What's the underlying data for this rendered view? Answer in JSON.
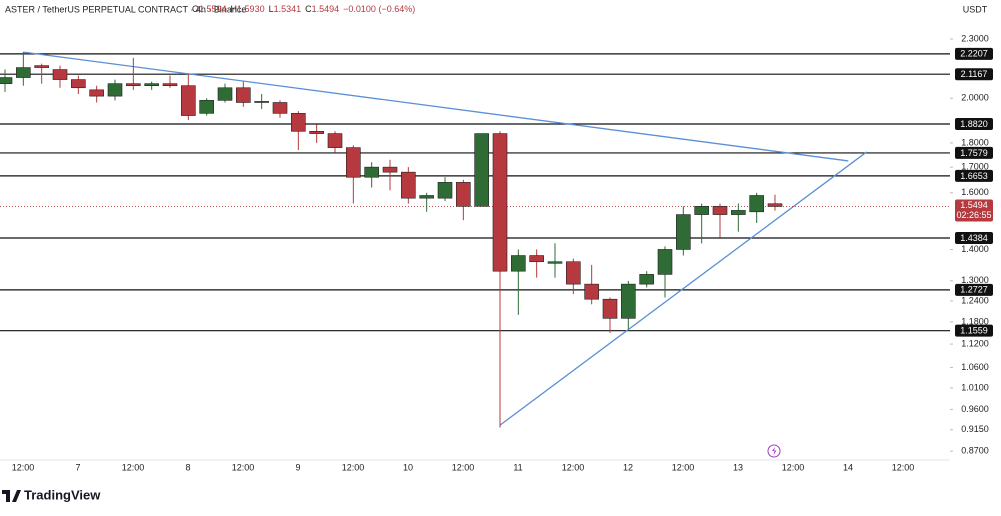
{
  "chart_data": {
    "type": "candlestick",
    "title": "ASTER / TetherUS PERPETUAL CONTRACT · 4h · Binance",
    "ohlc_header": [
      {
        "key": "O",
        "value": "1.5594"
      },
      {
        "key": "H",
        "value": "1.5930"
      },
      {
        "key": "L",
        "value": "1.5341"
      },
      {
        "key": "C",
        "value": "1.5494"
      }
    ],
    "change": "−0.0100 (−0.64%)",
    "currency": "USDT",
    "brand": "TradingView",
    "log_scale": true,
    "up_color": "#2f6b35",
    "down_color": "#b5393f",
    "open": [
      2.07,
      2.1,
      2.16,
      2.14,
      2.09,
      2.04,
      2.01,
      2.07,
      2.06,
      2.07,
      2.06,
      1.93,
      1.99,
      2.05,
      1.98,
      1.98,
      1.93,
      1.85,
      1.84,
      1.78,
      1.66,
      1.7,
      1.68,
      1.58,
      1.58,
      1.64,
      1.55,
      1.84,
      1.33,
      1.38,
      1.355,
      1.36,
      1.29,
      1.245,
      1.19,
      1.29,
      1.32,
      1.4,
      1.52,
      1.55,
      1.52,
      1.53,
      1.5594
    ],
    "high": [
      2.14,
      2.23,
      2.17,
      2.16,
      2.11,
      2.06,
      2.09,
      2.2,
      2.08,
      2.11,
      2.12,
      2.0,
      2.07,
      2.08,
      2.02,
      1.99,
      1.94,
      1.88,
      1.85,
      1.79,
      1.72,
      1.73,
      1.7,
      1.6,
      1.66,
      1.65,
      1.84,
      1.85,
      1.4,
      1.4,
      1.42,
      1.37,
      1.35,
      1.25,
      1.3,
      1.33,
      1.41,
      1.55,
      1.56,
      1.56,
      1.56,
      1.6,
      1.593
    ],
    "low": [
      2.03,
      2.06,
      2.07,
      2.05,
      2.02,
      1.98,
      1.99,
      2.04,
      2.04,
      2.05,
      1.9,
      1.92,
      1.98,
      1.96,
      1.95,
      1.91,
      1.77,
      1.8,
      1.76,
      1.56,
      1.62,
      1.61,
      1.56,
      1.53,
      1.57,
      1.5,
      1.55,
      0.92,
      1.2,
      1.31,
      1.31,
      1.26,
      1.23,
      1.15,
      1.16,
      1.28,
      1.25,
      1.38,
      1.42,
      1.44,
      1.46,
      1.49,
      1.5341
    ],
    "close": [
      2.1,
      2.15,
      2.15,
      2.09,
      2.05,
      2.01,
      2.07,
      2.06,
      2.07,
      2.06,
      1.92,
      1.99,
      2.05,
      1.98,
      1.985,
      1.93,
      1.85,
      1.84,
      1.78,
      1.66,
      1.7,
      1.68,
      1.58,
      1.59,
      1.64,
      1.55,
      1.84,
      1.33,
      1.38,
      1.36,
      1.36,
      1.29,
      1.245,
      1.19,
      1.29,
      1.32,
      1.4,
      1.52,
      1.55,
      1.52,
      1.535,
      1.59,
      1.5494
    ],
    "xticks": [
      "12:00",
      "7",
      "12:00",
      "8",
      "12:00",
      "9",
      "12:00",
      "10",
      "12:00",
      "11",
      "12:00",
      "12",
      "12:00",
      "13",
      "12:00",
      "14",
      "12:00"
    ],
    "ylim": [
      0.852,
      2.394
    ],
    "yticks": [
      {
        "value": 2.3,
        "label": "2.3000"
      },
      {
        "value": 2.0,
        "label": "2.0000"
      },
      {
        "value": 1.8,
        "label": "1.8000"
      },
      {
        "value": 1.7,
        "label": "1.7000"
      },
      {
        "value": 1.6,
        "label": "1.6000"
      },
      {
        "value": 1.4,
        "label": "1.4000"
      },
      {
        "value": 1.3,
        "label": "1.3000"
      },
      {
        "value": 1.24,
        "label": "1.2400"
      },
      {
        "value": 1.18,
        "label": "1.1800"
      },
      {
        "value": 1.12,
        "label": "1.1200"
      },
      {
        "value": 1.06,
        "label": "1.0600"
      },
      {
        "value": 1.01,
        "label": "1.0100"
      },
      {
        "value": 0.96,
        "label": "0.9600"
      },
      {
        "value": 0.915,
        "label": "0.9150"
      },
      {
        "value": 0.87,
        "label": "0.8700"
      }
    ],
    "levels": [
      2.2207,
      2.1167,
      {
        "value": 1.882,
        "label": "1.8820"
      },
      1.7579,
      1.6653,
      1.4384,
      1.2727,
      1.1559
    ],
    "trendlines": [
      {
        "x": [
          1,
          46
        ],
        "y": [
          2.23,
          1.725
        ],
        "color": "#5b8fd6"
      },
      {
        "x": [
          27,
          47
        ],
        "y": [
          0.925,
          1.762
        ],
        "color": "#5b8fd6"
      }
    ],
    "last_price": 1.5494,
    "countdown": "02:26:55"
  }
}
